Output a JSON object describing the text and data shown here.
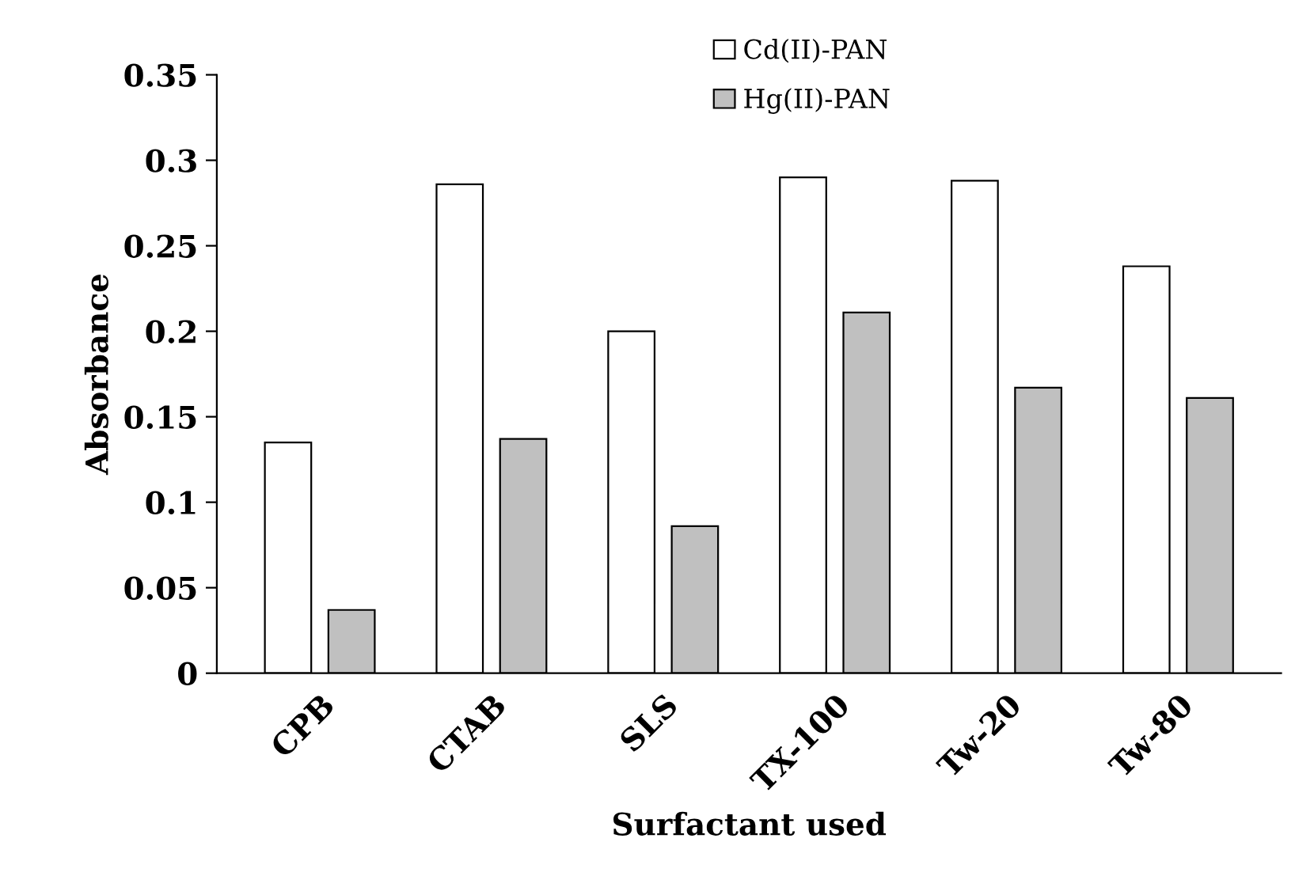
{
  "chart_data": {
    "type": "bar",
    "xlabel": "Surfactant used",
    "ylabel": "Absorbance",
    "categories": [
      "CPB",
      "CTAB",
      "SLS",
      "TX-100",
      "Tw-20",
      "Tw-80"
    ],
    "series": [
      {
        "name": "Cd(II)-PAN",
        "color": "#ffffff",
        "values": [
          0.135,
          0.286,
          0.2,
          0.29,
          0.288,
          0.238
        ]
      },
      {
        "name": "Hg(II)-PAN",
        "color": "#c0c0c0",
        "values": [
          0.037,
          0.137,
          0.086,
          0.211,
          0.167,
          0.161
        ]
      }
    ],
    "ylim": [
      0,
      0.35
    ],
    "yticks": [
      0,
      0.05,
      0.1,
      0.15,
      0.2,
      0.25,
      0.3,
      0.35
    ],
    "grid": false,
    "legend": "top"
  }
}
